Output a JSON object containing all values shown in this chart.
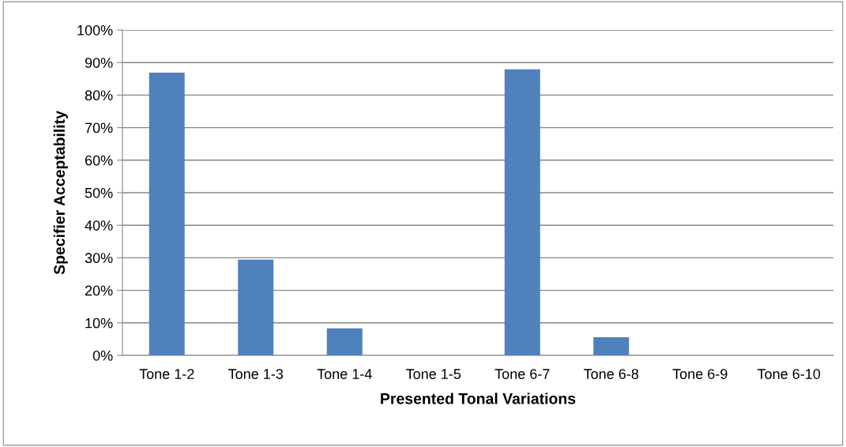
{
  "chart_data": {
    "type": "bar",
    "xlabel": "Presented Tonal Variations",
    "ylabel": "Specifier Acceptability",
    "categories": [
      "Tone 1-2",
      "Tone 1-3",
      "Tone 1-4",
      "Tone 1-5",
      "Tone 6-7",
      "Tone 6-8",
      "Tone 6-9",
      "Tone 6-10"
    ],
    "values": [
      86.9,
      29.4,
      8.3,
      0,
      87.9,
      5.6,
      0,
      0
    ],
    "color": "#4f81bd",
    "ylim": [
      0,
      100
    ],
    "yticks": [
      {
        "value": 0,
        "label": "0%"
      },
      {
        "value": 10,
        "label": "10%"
      },
      {
        "value": 20,
        "label": "20%"
      },
      {
        "value": 30,
        "label": "30%"
      },
      {
        "value": 40,
        "label": "40%"
      },
      {
        "value": 50,
        "label": "50%"
      },
      {
        "value": 60,
        "label": "60%"
      },
      {
        "value": 70,
        "label": "70%"
      },
      {
        "value": 80,
        "label": "80%"
      },
      {
        "value": 90,
        "label": "90%"
      },
      {
        "value": 100,
        "label": "100%"
      }
    ],
    "grid": "y",
    "legend": false
  }
}
